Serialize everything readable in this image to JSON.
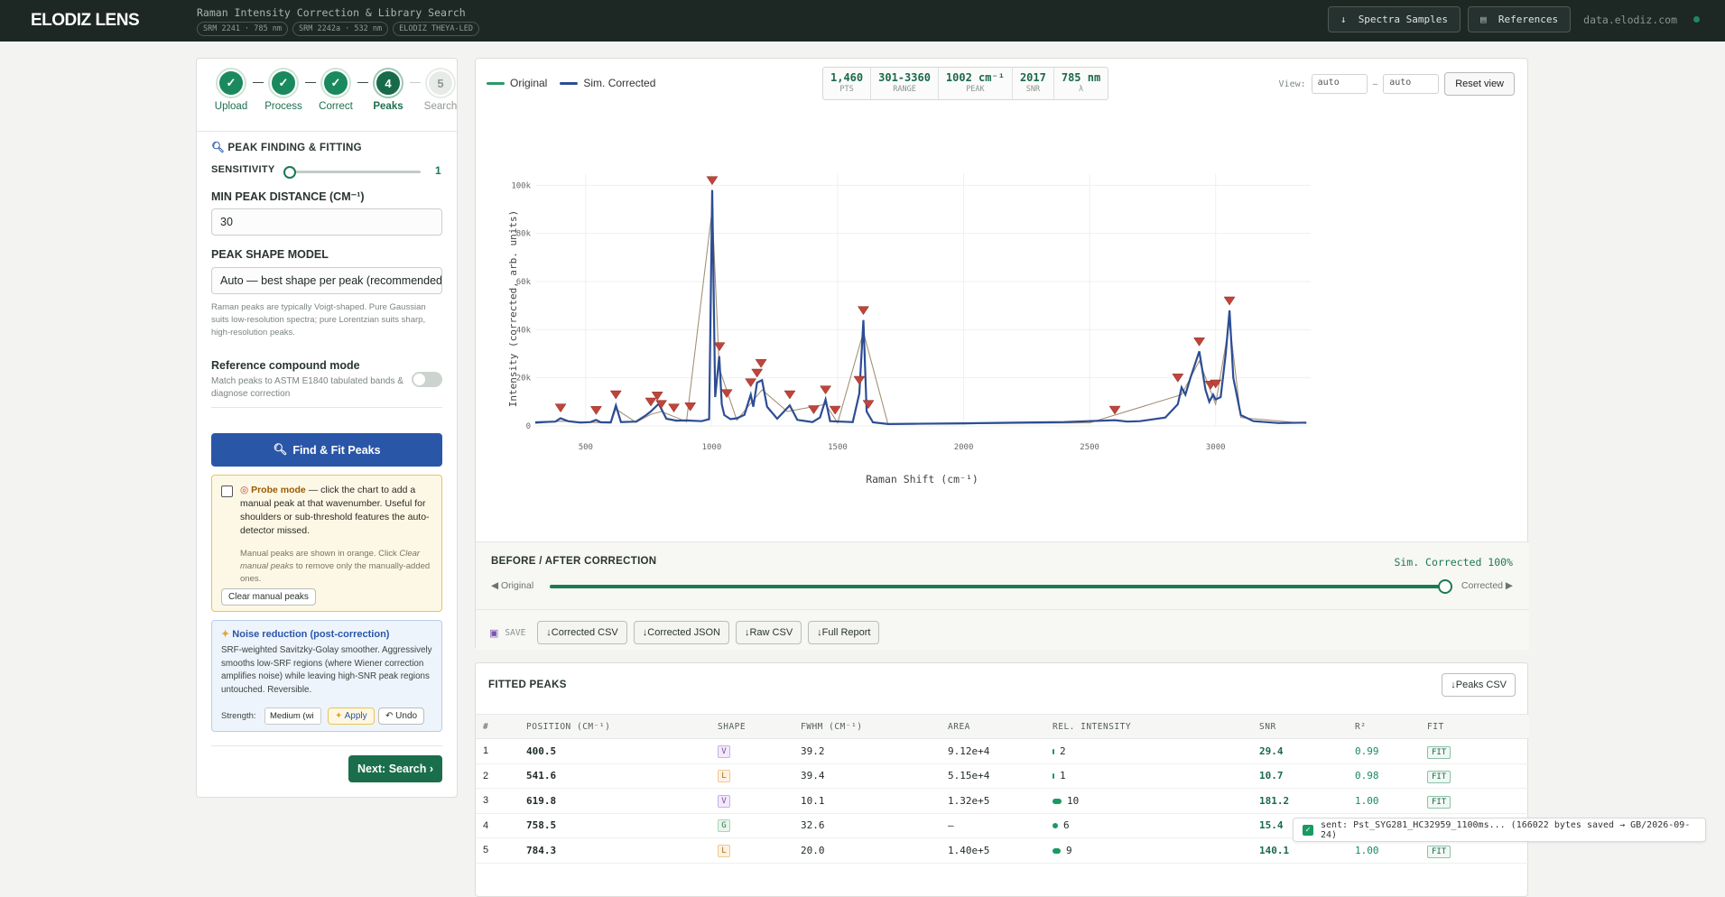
{
  "topbar": {
    "logo": "ELODIZ LENS",
    "title": "Raman Intensity Correction & Library Search",
    "tags": [
      "SRM 2241 · 785 nm",
      "SRM 2242a · 532 nm",
      "ELODIZ THEYA-LED"
    ],
    "spectra_btn": "Spectra Samples",
    "references_btn": "References",
    "host": "data.elodiz.com"
  },
  "stepper": [
    {
      "num": "✓",
      "label": "Upload",
      "state": "done"
    },
    {
      "num": "✓",
      "label": "Process",
      "state": "done"
    },
    {
      "num": "✓",
      "label": "Correct",
      "state": "done"
    },
    {
      "num": "4",
      "label": "Peaks",
      "state": "active"
    },
    {
      "num": "5",
      "label": "Search",
      "state": "todo"
    }
  ],
  "peaks_panel": {
    "title": "PEAK FINDING & FITTING",
    "sensitivity_label": "SENSITIVITY",
    "sensitivity_value": "1",
    "sensitivity_fraction": 0.0,
    "min_dist_label": "MIN PEAK DISTANCE (CM⁻¹)",
    "min_dist_value": "30",
    "shape_label": "PEAK SHAPE MODEL",
    "shape_value": "Auto — best shape per peak (recommended)",
    "shape_hint": "Raman peaks are typically Voigt-shaped. Pure Gaussian suits low-resolution spectra; pure Lorentzian suits sharp, high-resolution peaks.",
    "ref_mode_label": "Reference compound mode",
    "ref_mode_hint": "Match peaks to ASTM E1840 tabulated bands & diagnose correction",
    "find_btn": "Find & Fit Peaks",
    "probe_title": "Probe mode",
    "probe_text": " — click the chart to add a manual peak at that wavenumber. Useful for shoulders or sub-threshold features the auto-detector missed.",
    "probe_hint_a": "Manual peaks are shown in orange. Click ",
    "probe_hint_b": "Clear manual peaks",
    "probe_hint_c": " to remove only the manually-added ones.",
    "clear_btn": "Clear manual peaks",
    "noise_title": "Noise reduction (post-correction)",
    "noise_text": "SRF-weighted Savitzky-Golay smoother. Aggressively smooths low-SRF regions (where Wiener correction amplifies noise) while leaving high-SNR peak regions untouched. Reversible.",
    "strength_label": "Strength:",
    "strength_value": "Medium (wi",
    "apply_btn": "Apply",
    "undo_btn": "Undo",
    "next_btn": "Next: Search ›"
  },
  "chart_header": {
    "legend": [
      "Original",
      "Sim. Corrected"
    ],
    "stats": [
      {
        "v": "1,460",
        "k": "PTS"
      },
      {
        "v": "301-3360",
        "k": "RANGE"
      },
      {
        "v": "1002 cm⁻¹",
        "k": "PEAK"
      },
      {
        "v": "2017",
        "k": "SNR"
      },
      {
        "v": "785 nm",
        "k": "λ"
      }
    ],
    "view_label": "View:",
    "view_min": "auto",
    "view_max": "auto",
    "reset_btn": "Reset view"
  },
  "chart_data": {
    "type": "line",
    "xlabel": "Raman Shift (cm⁻¹)",
    "ylabel": "Intensity (corrected, arb. units)",
    "xlim": [
      300,
      3370
    ],
    "ylim": [
      0,
      105000
    ],
    "xticks": [
      500,
      1000,
      1500,
      2000,
      2500,
      3000
    ],
    "yticks": [
      0,
      20000,
      40000,
      60000,
      80000,
      100000
    ],
    "ytick_labels": [
      "0",
      "20k",
      "40k",
      "60k",
      "80k",
      "100k"
    ],
    "grid": true,
    "colors": {
      "original": "#2a9a6a",
      "corrected": "#2c4d94",
      "fit": "#d66a5a",
      "marker": "#c0443a"
    },
    "series": [
      {
        "name": "Sim. Corrected",
        "x": [
          300,
          380,
          400,
          430,
          480,
          520,
          541,
          560,
          600,
          620,
          640,
          700,
          740,
          758,
          790,
          820,
          860,
          900,
          960,
          990,
          1002,
          1014,
          1030,
          1040,
          1050,
          1075,
          1100,
          1130,
          1155,
          1165,
          1180,
          1200,
          1220,
          1260,
          1310,
          1340,
          1400,
          1430,
          1452,
          1470,
          1510,
          1560,
          1586,
          1602,
          1615,
          1640,
          1700,
          1800,
          2000,
          2200,
          2400,
          2600,
          2650,
          2700,
          2800,
          2850,
          2865,
          2880,
          2900,
          2935,
          2960,
          2975,
          2990,
          3000,
          3020,
          3040,
          3055,
          3070,
          3100,
          3150,
          3250,
          3360
        ],
        "y": [
          1500,
          1800,
          3200,
          2000,
          1400,
          1600,
          2500,
          1500,
          1500,
          8500,
          1600,
          1800,
          4500,
          6000,
          9200,
          3000,
          2200,
          2300,
          2000,
          2800,
          98000,
          12000,
          29000,
          9000,
          4500,
          2800,
          3200,
          4600,
          13000,
          8000,
          18000,
          19000,
          8000,
          3000,
          8500,
          2500,
          1600,
          3500,
          11000,
          2000,
          1800,
          1600,
          13500,
          44000,
          6000,
          1500,
          800,
          900,
          1100,
          1400,
          1600,
          2400,
          1800,
          2000,
          3500,
          9000,
          16000,
          13000,
          20000,
          31000,
          15000,
          10000,
          13000,
          11000,
          12000,
          30000,
          48000,
          20000,
          4500,
          2000,
          1200,
          1400
        ]
      },
      {
        "name": "Original",
        "x": [
          300,
          400,
          600,
          620,
          700,
          758,
          800,
          900,
          1002,
          1030,
          1100,
          1160,
          1200,
          1300,
          1452,
          1500,
          1602,
          1700,
          2000,
          2500,
          2865,
          2935,
          3000,
          3055,
          3100,
          3360
        ],
        "y": [
          1000,
          2000,
          1200,
          7000,
          1500,
          4800,
          6000,
          1800,
          90000,
          24000,
          2400,
          10000,
          15000,
          6000,
          9000,
          1300,
          39000,
          700,
          900,
          1300,
          13000,
          27000,
          9000,
          43000,
          3500,
          1000
        ]
      }
    ],
    "peak_markers": [
      400.5,
      541.6,
      619.8,
      758.5,
      784.3,
      800,
      850,
      915,
      1002,
      1031,
      1060,
      1155,
      1180,
      1196,
      1310,
      1405,
      1452,
      1490,
      1586,
      1602,
      1622,
      2600,
      2850,
      2935,
      2980,
      3000,
      3055
    ],
    "marker_y": [
      3500,
      2500,
      9000,
      6000,
      8500,
      5000,
      3500,
      4000,
      98000,
      29000,
      9500,
      14000,
      18000,
      22000,
      9000,
      2800,
      11000,
      2600,
      15000,
      44000,
      5000,
      2600,
      16000,
      31000,
      13000,
      13500,
      48000
    ]
  },
  "before_after": {
    "title": "BEFORE / AFTER CORRECTION",
    "status": "Sim. Corrected 100%",
    "left_label": "◀ Original",
    "right_label": "Corrected ▶",
    "fraction": 1.0,
    "save_label": "SAVE",
    "buttons": [
      "↓Corrected CSV",
      "↓Corrected JSON",
      "↓Raw CSV",
      "↓Full Report"
    ]
  },
  "fitted_peaks": {
    "title": "FITTED PEAKS",
    "export_btn": "↓Peaks CSV",
    "columns": [
      "#",
      "POSITION (CM⁻¹)",
      "SHAPE",
      "FWHM (CM⁻¹)",
      "AREA",
      "REL. INTENSITY",
      "SNR",
      "R²",
      "FIT"
    ],
    "rows": [
      {
        "n": "1",
        "pos": "400.5",
        "shape": "V",
        "fwhm": "39.2",
        "area": "9.12e+4",
        "rel": "2",
        "snr": "29.4",
        "r2": "0.99",
        "fit": "FIT"
      },
      {
        "n": "2",
        "pos": "541.6",
        "shape": "L",
        "fwhm": "39.4",
        "area": "5.15e+4",
        "rel": "1",
        "snr": "10.7",
        "r2": "0.98",
        "fit": "FIT"
      },
      {
        "n": "3",
        "pos": "619.8",
        "shape": "V",
        "fwhm": "10.1",
        "area": "1.32e+5",
        "rel": "10",
        "snr": "181.2",
        "r2": "1.00",
        "fit": "FIT"
      },
      {
        "n": "4",
        "pos": "758.5",
        "shape": "G",
        "fwhm": "32.6",
        "area": "—",
        "rel": "6",
        "snr": "15.4",
        "r2": "",
        "fit": ""
      },
      {
        "n": "5",
        "pos": "784.3",
        "shape": "L",
        "fwhm": "20.0",
        "area": "1.40e+5",
        "rel": "9",
        "snr": "140.1",
        "r2": "1.00",
        "fit": "FIT"
      }
    ]
  },
  "toast": {
    "text": "sent: Pst_SYG281_HC32959_1100ms... (166022 bytes saved → GB/2026-09-24)"
  }
}
